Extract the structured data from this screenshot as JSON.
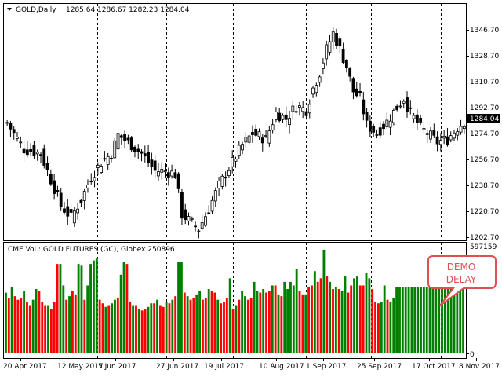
{
  "header": {
    "symbol": "GOLD,Daily",
    "ohlc": "1285.64 1286.67 1282.23 1284.04",
    "menu_icon": "triangle-down-icon"
  },
  "price_axis": {
    "ticks": [
      "1346.70",
      "1328.70",
      "1310.70",
      "1292.70",
      "1274.70",
      "1256.70",
      "1238.70",
      "1220.70",
      "1202.70"
    ],
    "current_price": "1284.04"
  },
  "volume_panel": {
    "title": "CME Vol.: GOLD FUTURES (GC), Globex 250896",
    "axis_max": "597159",
    "axis_min": "0"
  },
  "time_axis": {
    "labels": [
      "20 Apr 2017",
      "12 May 2017",
      "5 Jun 2017",
      "27 Jun 2017",
      "19 Jul 2017",
      "10 Aug 2017",
      "1 Sep 2017",
      "25 Sep 2017",
      "17 Oct 2017",
      "8 Nov 2017"
    ]
  },
  "callout": {
    "line1": "DEMO",
    "line2": "DELAY"
  },
  "colors": {
    "up_volume": "#008000",
    "down_volume": "#ff0000",
    "callout": "#e05050",
    "grid": "#000000"
  },
  "chart_data": [
    {
      "type": "candlestick",
      "title": "GOLD,Daily",
      "last_close": 1284.04,
      "ylim": [
        1202.7,
        1364.7
      ],
      "close_path": [
        [
          0,
          1283
        ],
        [
          5,
          1265
        ],
        [
          10,
          1262
        ],
        [
          12,
          1250
        ],
        [
          16,
          1226
        ],
        [
          19,
          1218
        ],
        [
          22,
          1230
        ],
        [
          25,
          1246
        ],
        [
          28,
          1256
        ],
        [
          31,
          1262
        ],
        [
          33,
          1275
        ],
        [
          37,
          1268
        ],
        [
          40,
          1262
        ],
        [
          44,
          1250
        ],
        [
          47,
          1250
        ],
        [
          50,
          1248
        ],
        [
          52,
          1220
        ],
        [
          55,
          1214
        ],
        [
          57,
          1210
        ],
        [
          60,
          1224
        ],
        [
          63,
          1240
        ],
        [
          67,
          1256
        ],
        [
          70,
          1268
        ],
        [
          73,
          1276
        ],
        [
          77,
          1272
        ],
        [
          80,
          1290
        ],
        [
          83,
          1286
        ],
        [
          86,
          1295
        ],
        [
          89,
          1292
        ],
        [
          91,
          1307
        ],
        [
          93,
          1318
        ],
        [
          95,
          1334
        ],
        [
          97,
          1345
        ],
        [
          99,
          1334
        ],
        [
          101,
          1322
        ],
        [
          103,
          1305
        ],
        [
          105,
          1300
        ],
        [
          107,
          1282
        ],
        [
          110,
          1276
        ],
        [
          113,
          1284
        ],
        [
          116,
          1294
        ],
        [
          118,
          1300
        ],
        [
          120,
          1290
        ],
        [
          123,
          1280
        ],
        [
          126,
          1274
        ],
        [
          128,
          1270
        ],
        [
          131,
          1272
        ],
        [
          134,
          1280
        ],
        [
          136,
          1284
        ]
      ]
    },
    {
      "type": "bar",
      "title": "CME Vol.: GOLD FUTURES (GC), Globex 250896",
      "ylim": [
        0,
        597159
      ],
      "values": [
        340000,
        310000,
        370000,
        320000,
        300000,
        310000,
        350000,
        290000,
        270000,
        300000,
        360000,
        350000,
        290000,
        270000,
        270000,
        250000,
        290000,
        500000,
        500000,
        380000,
        300000,
        320000,
        350000,
        330000,
        500000,
        490000,
        300000,
        380000,
        500000,
        520000,
        530000,
        300000,
        280000,
        260000,
        270000,
        280000,
        300000,
        310000,
        440000,
        510000,
        500000,
        290000,
        270000,
        270000,
        250000,
        240000,
        250000,
        260000,
        280000,
        280000,
        300000,
        270000,
        260000,
        290000,
        280000,
        300000,
        320000,
        510000,
        510000,
        340000,
        320000,
        300000,
        310000,
        330000,
        350000,
        300000,
        310000,
        360000,
        350000,
        340000,
        300000,
        280000,
        290000,
        310000,
        420000,
        250000,
        270000,
        300000,
        350000,
        320000,
        300000,
        310000,
        400000,
        350000,
        340000,
        360000,
        340000,
        350000,
        380000,
        380000,
        330000,
        320000,
        400000,
        360000,
        400000,
        380000,
        470000,
        350000,
        330000,
        330000,
        370000,
        380000,
        460000,
        400000,
        420000,
        580000,
        430000,
        400000,
        360000,
        370000,
        360000,
        350000,
        430000,
        340000,
        380000,
        420000,
        430000,
        380000,
        380000,
        450000,
        420000,
        360000,
        290000,
        280000,
        290000,
        380000,
        300000,
        290000,
        310000
      ],
      "up": [
        1,
        0,
        1,
        0,
        0,
        0,
        1,
        0,
        0,
        1,
        1,
        0,
        0,
        0,
        1,
        0,
        0,
        0,
        1,
        1,
        0,
        1,
        0,
        0,
        1,
        1,
        0,
        1,
        1,
        1,
        1,
        0,
        0,
        1,
        0,
        1,
        1,
        0,
        1,
        1,
        0,
        0,
        1,
        0,
        1,
        0,
        0,
        1,
        1,
        0,
        1,
        0,
        0,
        1,
        0,
        1,
        0,
        1,
        1,
        0,
        1,
        0,
        0,
        1,
        1,
        0,
        0,
        1,
        0,
        0,
        1,
        0,
        0,
        0,
        1,
        0,
        1,
        0,
        1,
        1,
        0,
        0,
        1,
        1,
        0,
        1,
        0,
        0,
        1,
        0,
        1,
        0,
        1,
        1,
        1,
        1,
        1,
        0,
        0,
        1,
        0,
        0,
        1,
        0,
        0,
        1,
        0,
        1,
        0,
        1,
        0,
        1,
        1,
        0,
        0,
        1,
        1,
        0,
        0,
        1,
        1,
        0,
        0,
        0,
        1,
        1,
        0,
        1,
        1
      ],
      "flat_value": 370000,
      "flat_count": 23
    }
  ]
}
